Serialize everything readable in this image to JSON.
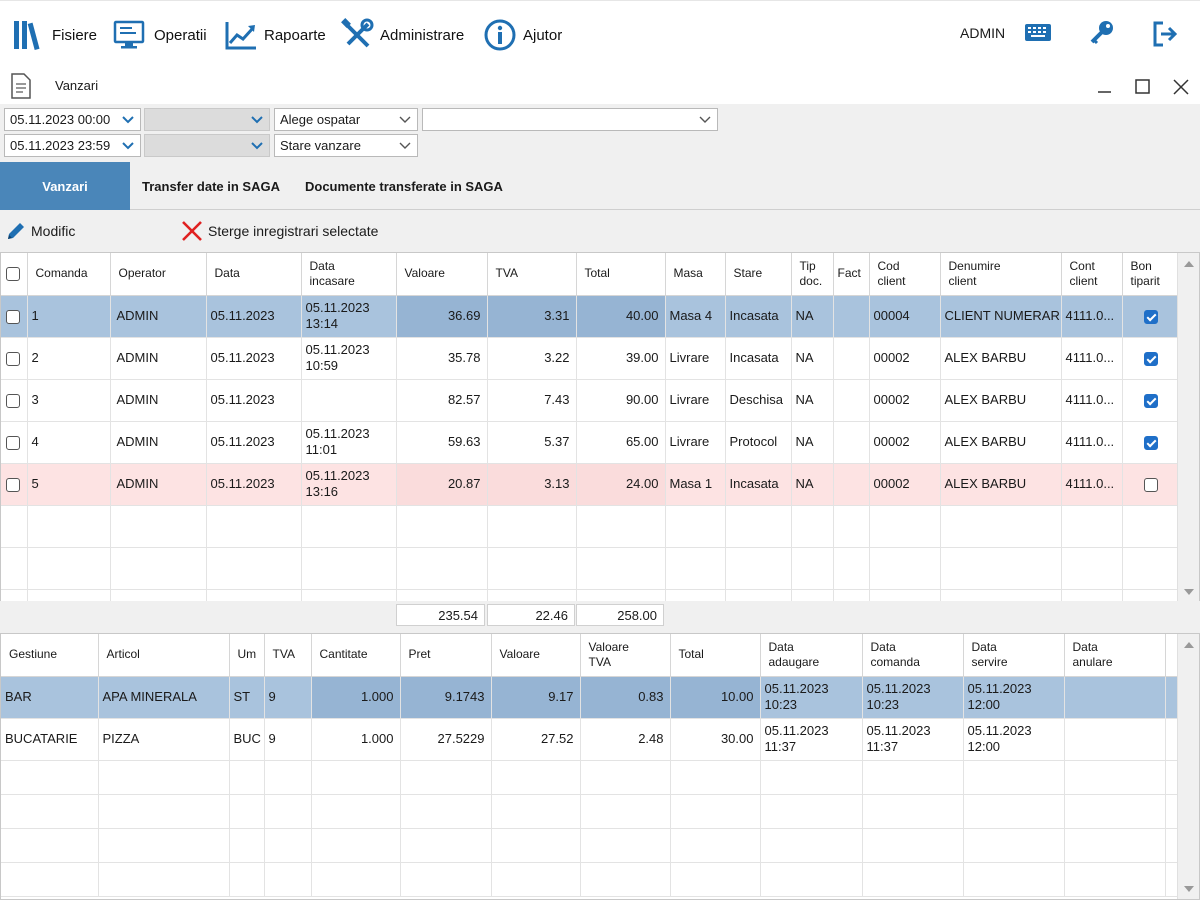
{
  "menu": [
    {
      "label": "Fisiere",
      "icon": "books-icon"
    },
    {
      "label": "Operatii",
      "icon": "monitor-icon"
    },
    {
      "label": "Rapoarte",
      "icon": "chart-icon"
    },
    {
      "label": "Administrare",
      "icon": "tools-icon"
    },
    {
      "label": "Ajutor",
      "icon": "info-icon"
    }
  ],
  "user": {
    "name": "ADMIN"
  },
  "colors": {
    "accent": "#4a86b9",
    "icon_blue": "#1f6fb2",
    "selected_row": "#a9c3dd",
    "pink_row": "#fde3e3",
    "delete_red": "#e02020"
  },
  "window": {
    "title": "Vanzari"
  },
  "filters": {
    "date_from": "05.11.2023 00:00",
    "date_to": "05.11.2023 23:59",
    "waiter": "Alege ospatar",
    "sale_state": "Stare vanzare"
  },
  "tabs": [
    "Vanzari",
    "Transfer date in SAGA",
    "Documente transferate in SAGA"
  ],
  "actions": {
    "edit": "Modific",
    "delete": "Sterge inregistrari selectate"
  },
  "orders": {
    "headers": {
      "comanda": "Comanda",
      "operator": "Operator",
      "data": "Data",
      "data_incasare_1": "Data",
      "data_incasare_2": "incasare",
      "valoare": "Valoare",
      "tva": "TVA",
      "total": "Total",
      "masa": "Masa",
      "stare": "Stare",
      "tip_1": "Tip",
      "tip_2": "doc.",
      "fact": "Fact",
      "cod_1": "Cod",
      "cod_2": "client",
      "den_1": "Denumire",
      "den_2": "client",
      "cont_1": "Cont",
      "cont_2": "client",
      "bon_1": "Bon",
      "bon_2": "tiparit"
    },
    "rows": [
      {
        "comanda": "1",
        "operator": "ADMIN",
        "data": "05.11.2023",
        "inc_date": "05.11.2023",
        "inc_time": "13:14",
        "valoare": "36.69",
        "tva": "3.31",
        "total": "40.00",
        "masa": "Masa 4",
        "stare": "Incasata",
        "tip": "NA",
        "fact": "",
        "cod": "00004",
        "denumire": "CLIENT NUMERAR",
        "cont": "4111.0...",
        "bon": true
      },
      {
        "comanda": "2",
        "operator": "ADMIN",
        "data": "05.11.2023",
        "inc_date": "05.11.2023",
        "inc_time": "10:59",
        "valoare": "35.78",
        "tva": "3.22",
        "total": "39.00",
        "masa": "Livrare",
        "stare": "Incasata",
        "tip": "NA",
        "fact": "",
        "cod": "00002",
        "denumire": "ALEX BARBU",
        "cont": "4111.0...",
        "bon": true
      },
      {
        "comanda": "3",
        "operator": "ADMIN",
        "data": "05.11.2023",
        "inc_date": "",
        "inc_time": "",
        "valoare": "82.57",
        "tva": "7.43",
        "total": "90.00",
        "masa": "Livrare",
        "stare": "Deschisa",
        "tip": "NA",
        "fact": "",
        "cod": "00002",
        "denumire": "ALEX BARBU",
        "cont": "4111.0...",
        "bon": true
      },
      {
        "comanda": "4",
        "operator": "ADMIN",
        "data": "05.11.2023",
        "inc_date": "05.11.2023",
        "inc_time": "11:01",
        "valoare": "59.63",
        "tva": "5.37",
        "total": "65.00",
        "masa": "Livrare",
        "stare": "Protocol",
        "tip": "NA",
        "fact": "",
        "cod": "00002",
        "denumire": "ALEX BARBU",
        "cont": "4111.0...",
        "bon": true
      },
      {
        "comanda": "5",
        "operator": "ADMIN",
        "data": "05.11.2023",
        "inc_date": "05.11.2023",
        "inc_time": "13:16",
        "valoare": "20.87",
        "tva": "3.13",
        "total": "24.00",
        "masa": "Masa 1",
        "stare": "Incasata",
        "tip": "NA",
        "fact": "",
        "cod": "00002",
        "denumire": "ALEX BARBU",
        "cont": "4111.0...",
        "bon": false
      }
    ],
    "totals": {
      "valoare": "235.54",
      "tva": "22.46",
      "total": "258.00"
    }
  },
  "items": {
    "headers": {
      "gestiune": "Gestiune",
      "articol": "Articol",
      "um": "Um",
      "tva": "TVA",
      "cantitate": "Cantitate",
      "pret": "Pret",
      "valoare": "Valoare",
      "vtva_1": "Valoare",
      "vtva_2": "TVA",
      "total": "Total",
      "adaug_1": "Data",
      "adaug_2": "adaugare",
      "com_1": "Data",
      "com_2": "comanda",
      "serv_1": "Data",
      "serv_2": "servire",
      "anul_1": "Data",
      "anul_2": "anulare"
    },
    "rows": [
      {
        "gestiune": "BAR",
        "articol": "APA MINERALA",
        "um": "ST",
        "tva": "9",
        "cantitate": "1.000",
        "pret": "9.1743",
        "valoare": "9.17",
        "vtva": "0.83",
        "total": "10.00",
        "adaug_d": "05.11.2023",
        "adaug_t": "10:23",
        "com_d": "05.11.2023",
        "com_t": "10:23",
        "serv_d": "05.11.2023",
        "serv_t": "12:00",
        "anul": ""
      },
      {
        "gestiune": "BUCATARIE",
        "articol": "PIZZA",
        "um": "BUC",
        "tva": "9",
        "cantitate": "1.000",
        "pret": "27.5229",
        "valoare": "27.52",
        "vtva": "2.48",
        "total": "30.00",
        "adaug_d": "05.11.2023",
        "adaug_t": "11:37",
        "com_d": "05.11.2023",
        "com_t": "11:37",
        "serv_d": "05.11.2023",
        "serv_t": "12:00",
        "anul": ""
      }
    ]
  }
}
